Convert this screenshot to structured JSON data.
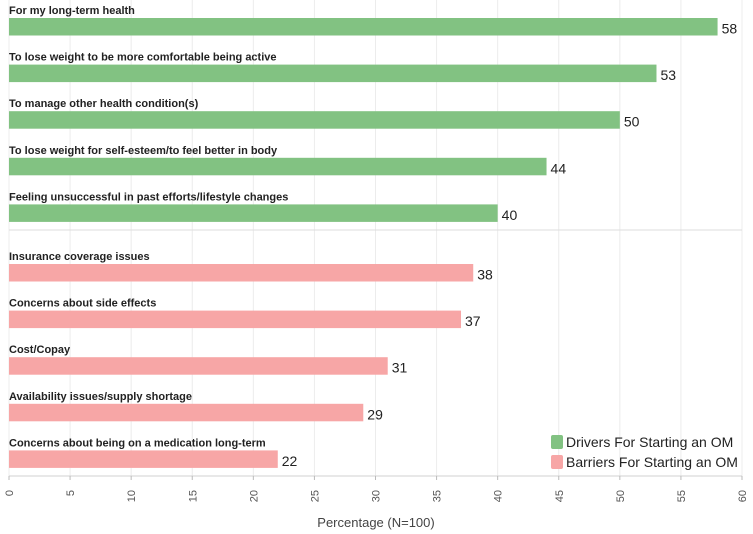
{
  "chart_data": {
    "type": "bar",
    "orientation": "horizontal",
    "xlabel": "Percentage (N=100)",
    "xlim": [
      0,
      60
    ],
    "xticks": [
      0,
      5,
      10,
      15,
      20,
      25,
      30,
      35,
      40,
      45,
      50,
      55,
      60
    ],
    "legend_position": "bottom-right",
    "series": [
      {
        "name": "Drivers For Starting an OM",
        "color": "#82c282",
        "categories": [
          "For my long-term health",
          "To lose weight to be more comfortable being active",
          "To manage other health condition(s)",
          "To lose weight for self-esteem/to feel better in body",
          "Feeling unsuccessful in past efforts/lifestyle changes"
        ],
        "values": [
          58,
          53,
          50,
          44,
          40
        ]
      },
      {
        "name": "Barriers For Starting an OM",
        "color": "#f7a6a6",
        "categories": [
          "Insurance coverage issues",
          "Concerns about side effects",
          "Cost/Copay",
          "Availability issues/supply shortage",
          "Concerns about being on a medication long-term"
        ],
        "values": [
          38,
          37,
          31,
          29,
          22
        ]
      }
    ]
  }
}
